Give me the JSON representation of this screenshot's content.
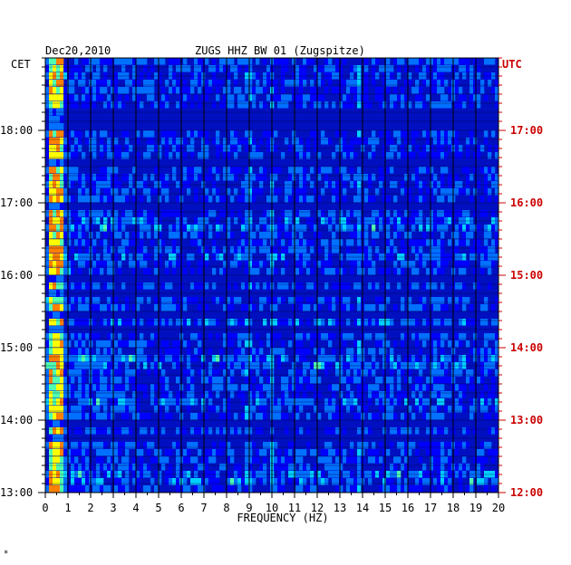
{
  "header": {
    "date": "Dec20,2010",
    "station": "ZUGS HHZ BW 01 (Zugspitze)"
  },
  "chart_data": {
    "type": "heatmap",
    "title": "ZUGS HHZ BW 01 (Zugspitze)",
    "date": "Dec20,2010",
    "xlabel": "FREQUENCY (HZ)",
    "xlim": [
      0,
      20
    ],
    "x_ticks": [
      "0",
      "1",
      "2",
      "3",
      "4",
      "5",
      "6",
      "7",
      "8",
      "9",
      "10",
      "11",
      "12",
      "13",
      "14",
      "15",
      "16",
      "17",
      "18",
      "19",
      "20"
    ],
    "left_axis_label": "CET",
    "right_axis_label": "UTC",
    "left_ticks": [
      "18:00",
      "17:00",
      "16:00",
      "15:00",
      "14:00",
      "13:00"
    ],
    "right_ticks": [
      "17:00",
      "16:00",
      "15:00",
      "14:00",
      "13:00",
      "12:00"
    ],
    "time_range_cet": [
      "13:00",
      "18:50"
    ],
    "colormap": [
      "#000090",
      "#0000ff",
      "#0070ff",
      "#00d0ff",
      "#50ffb0",
      "#ffff00",
      "#ff8000",
      "#d00000"
    ],
    "background_color": "#0010c0",
    "features": [
      {
        "label": "microseism band",
        "freq_hz": [
          0.1,
          0.8
        ],
        "intensity": "high"
      },
      {
        "label": "narrow line",
        "freq_hz": 9.0,
        "intensity": "medium"
      },
      {
        "label": "narrow line",
        "freq_hz": 10.0,
        "intensity": "medium"
      },
      {
        "label": "narrow line",
        "freq_hz": 11.2,
        "intensity": "low"
      },
      {
        "label": "narrow line",
        "freq_hz": 13.8,
        "intensity": "medium"
      },
      {
        "label": "band",
        "freq_hz": [
          17.0,
          17.6
        ],
        "intensity": "low"
      }
    ]
  }
}
